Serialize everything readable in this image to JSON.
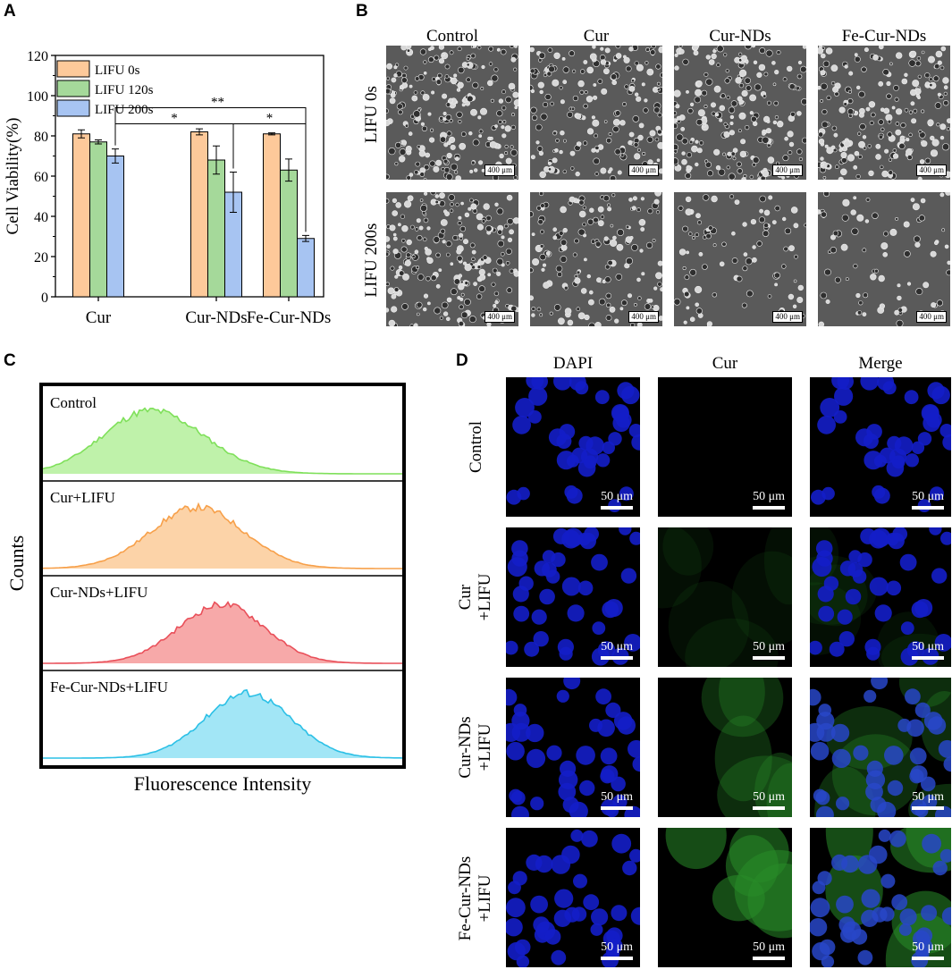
{
  "panels": {
    "a": "A",
    "b": "B",
    "c": "C",
    "d": "D"
  },
  "chart_data": [
    {
      "type": "bar",
      "panel": "A",
      "categories": [
        "Cur",
        "Cur-NDs",
        "Fe-Cur-NDs"
      ],
      "series": [
        {
          "name": "LIFU 0s",
          "values": [
            81,
            82,
            81
          ],
          "errors": [
            2,
            1.5,
            0.5
          ],
          "color": "#fdc99a"
        },
        {
          "name": "LIFU 120s",
          "values": [
            77,
            68,
            63
          ],
          "errors": [
            1,
            7,
            5.5
          ],
          "color": "#a5d99a"
        },
        {
          "name": "LIFU 200s",
          "values": [
            70,
            52,
            29
          ],
          "errors": [
            3.5,
            10,
            1.5
          ],
          "color": "#a7c4f2"
        }
      ],
      "ylabel": "Cell Viability(%)",
      "ylim": [
        0,
        120
      ],
      "yticks": [
        "0",
        "20",
        "40",
        "60",
        "80",
        "100",
        "120"
      ],
      "significance": [
        {
          "label": "*",
          "from": "Cur LIFU 200s",
          "to": "Cur-NDs LIFU 200s"
        },
        {
          "label": "**",
          "from": "Cur LIFU 200s",
          "to": "Fe-Cur-NDs LIFU 200s"
        },
        {
          "label": "*",
          "from": "Cur-NDs LIFU 200s",
          "to": "Fe-Cur-NDs LIFU 200s"
        }
      ]
    },
    {
      "type": "area",
      "panel": "C",
      "xlabel": "Fluorescence Intensity",
      "ylabel": "Counts",
      "series": [
        {
          "name": "Control",
          "color": "#7fe05a",
          "fill": "#bff2aa"
        },
        {
          "name": "Cur+LIFU",
          "color": "#f7a04a",
          "fill": "#fcd3a8"
        },
        {
          "name": "Cur-NDs+LIFU",
          "color": "#e9505a",
          "fill": "#f7a9a9"
        },
        {
          "name": "Fe-Cur-NDs+LIFU",
          "color": "#2cc0e6",
          "fill": "#a2e6f6"
        }
      ]
    }
  ],
  "panel_b": {
    "columns": [
      "Control",
      "Cur",
      "Cur-NDs",
      "Fe-Cur-NDs"
    ],
    "rows": [
      "LIFU 0s",
      "LIFU 200s"
    ],
    "scale": "400 μm"
  },
  "panel_d": {
    "columns": [
      "DAPI",
      "Cur",
      "Merge"
    ],
    "rows": [
      {
        "line1": "Control",
        "line2": ""
      },
      {
        "line1": "Cur",
        "line2": "+LIFU"
      },
      {
        "line1": "Cur-NDs",
        "line2": "+LIFU"
      },
      {
        "line1": "Fe-Cur-NDs",
        "line2": "+LIFU"
      }
    ],
    "scale": "50 μm"
  }
}
